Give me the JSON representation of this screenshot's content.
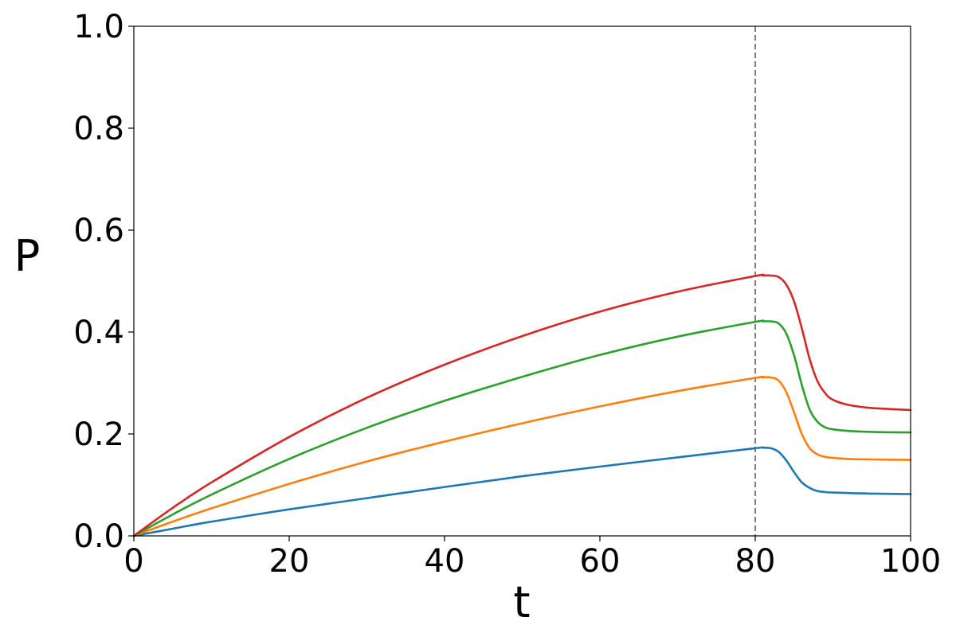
{
  "chart_data": {
    "type": "line",
    "xlabel": "t",
    "ylabel": "P",
    "xlim": [
      0,
      100
    ],
    "ylim": [
      0,
      1
    ],
    "x_ticks": [
      0,
      20,
      40,
      60,
      80,
      100
    ],
    "x_tick_labels": [
      "0",
      "20",
      "40",
      "60",
      "80",
      "100"
    ],
    "y_ticks": [
      0,
      0.2,
      0.4,
      0.6,
      0.8,
      1.0
    ],
    "y_tick_labels": [
      "0.0",
      "0.2",
      "0.4",
      "0.6",
      "0.8",
      "1.0"
    ],
    "grid": false,
    "legend": "none",
    "reference_line": {
      "x": 80,
      "style": "dashed",
      "color": "#808080"
    },
    "x": [
      0,
      5,
      10,
      20,
      30,
      40,
      50,
      60,
      70,
      80,
      81,
      82,
      83,
      84,
      85,
      86,
      87,
      88,
      89,
      90,
      92,
      95,
      100
    ],
    "series": [
      {
        "color": "#1f77b4",
        "values": [
          0,
          0.014,
          0.028,
          0.052,
          0.074,
          0.096,
          0.117,
          0.136,
          0.154,
          0.172,
          0.173,
          0.172,
          0.165,
          0.148,
          0.125,
          0.105,
          0.094,
          0.088,
          0.086,
          0.085,
          0.084,
          0.083,
          0.082
        ]
      },
      {
        "color": "#ff7f0e",
        "values": [
          0,
          0.028,
          0.054,
          0.102,
          0.146,
          0.185,
          0.221,
          0.254,
          0.284,
          0.31,
          0.311,
          0.311,
          0.305,
          0.282,
          0.242,
          0.2,
          0.172,
          0.16,
          0.155,
          0.153,
          0.151,
          0.15,
          0.149
        ]
      },
      {
        "color": "#2ca02c",
        "values": [
          0,
          0.042,
          0.081,
          0.151,
          0.212,
          0.265,
          0.312,
          0.355,
          0.391,
          0.42,
          0.421,
          0.421,
          0.417,
          0.397,
          0.354,
          0.296,
          0.248,
          0.224,
          0.213,
          0.209,
          0.206,
          0.204,
          0.203
        ]
      },
      {
        "color": "#d62728",
        "values": [
          0,
          0.055,
          0.105,
          0.194,
          0.271,
          0.336,
          0.392,
          0.44,
          0.479,
          0.51,
          0.511,
          0.511,
          0.508,
          0.493,
          0.46,
          0.407,
          0.347,
          0.304,
          0.28,
          0.267,
          0.257,
          0.251,
          0.247
        ]
      }
    ]
  }
}
